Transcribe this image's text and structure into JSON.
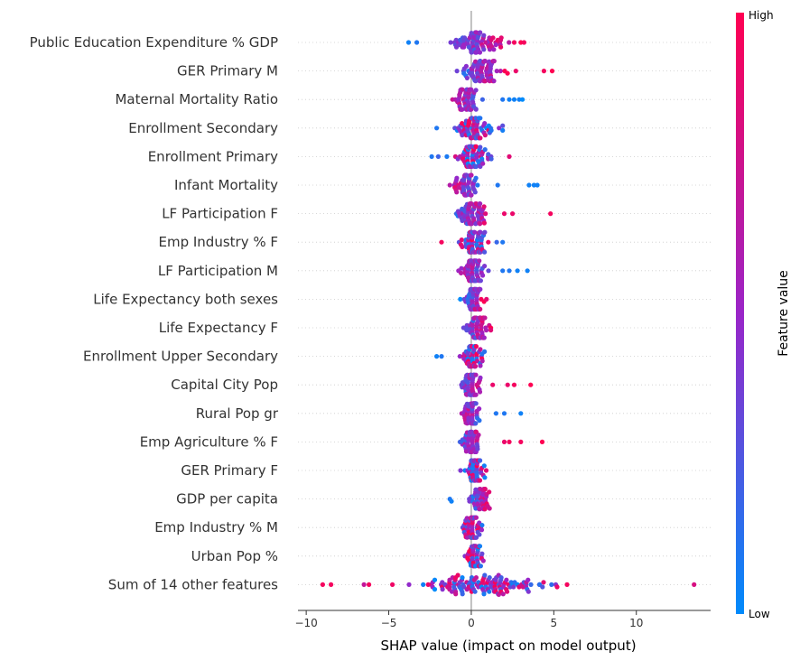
{
  "chart_data": {
    "type": "scatter",
    "subtype": "shap-beeswarm",
    "xlabel": "SHAP value (impact on model output)",
    "xlim": [
      -10.5,
      14.5
    ],
    "xticks": [
      -10,
      -5,
      0,
      5,
      10
    ],
    "colorbar": {
      "label": "Feature value",
      "high": "High",
      "low": "Low",
      "low_color": "#008bfb",
      "high_color": "#ff0052"
    },
    "grid": false,
    "features": [
      {
        "name": "Public Education Expenditure % GDP",
        "min": -3.8,
        "max": 3.2,
        "center": 0.5,
        "spread": 1.6,
        "n": 80,
        "color_trend": 1,
        "extra": [
          [
            -3.8,
            0.05
          ],
          [
            -3.3,
            0.1
          ],
          [
            2.6,
            0.95
          ],
          [
            3.0,
            1.0
          ],
          [
            3.2,
            0.95
          ]
        ]
      },
      {
        "name": "GER Primary M",
        "min": -1.2,
        "max": 5.0,
        "center": 0.6,
        "spread": 1.1,
        "n": 75,
        "color_trend": 1,
        "extra": [
          [
            4.4,
            0.95
          ],
          [
            4.9,
            1.0
          ],
          [
            2.7,
            0.9
          ]
        ]
      },
      {
        "name": "Maternal Mortality Ratio",
        "min": -1.3,
        "max": 3.1,
        "center": -0.3,
        "spread": 0.7,
        "n": 60,
        "color_trend": -1,
        "extra": [
          [
            1.9,
            0.1
          ],
          [
            2.3,
            0.05
          ],
          [
            2.6,
            0.05
          ],
          [
            2.9,
            0.05
          ],
          [
            3.1,
            0.0
          ]
        ]
      },
      {
        "name": "Enrollment Secondary",
        "min": -2.1,
        "max": 1.9,
        "center": 0.2,
        "spread": 0.9,
        "n": 70,
        "color_trend": 0,
        "extra": [
          [
            -2.1,
            0.1
          ],
          [
            1.9,
            0.3
          ]
        ]
      },
      {
        "name": "Enrollment Primary",
        "min": -2.4,
        "max": 2.4,
        "center": 0.2,
        "spread": 0.9,
        "n": 75,
        "color_trend": 0,
        "extra": [
          [
            -2.4,
            0.1
          ],
          [
            -2.0,
            0.2
          ],
          [
            2.3,
            0.85
          ]
        ]
      },
      {
        "name": "Infant Mortality",
        "min": -1.3,
        "max": 4.0,
        "center": -0.3,
        "spread": 0.6,
        "n": 55,
        "color_trend": -1,
        "extra": [
          [
            3.5,
            0.05
          ],
          [
            3.8,
            0.05
          ],
          [
            4.0,
            0.05
          ],
          [
            1.6,
            0.1
          ]
        ]
      },
      {
        "name": "LF Participation F",
        "min": -1.3,
        "max": 4.8,
        "center": 0.0,
        "spread": 0.8,
        "n": 70,
        "color_trend": 1,
        "extra": [
          [
            4.8,
            0.95
          ],
          [
            2.5,
            0.9
          ],
          [
            2.0,
            0.9
          ]
        ]
      },
      {
        "name": "Emp Industry % F",
        "min": -1.8,
        "max": 1.9,
        "center": 0.1,
        "spread": 0.8,
        "n": 70,
        "color_trend": 0,
        "extra": [
          [
            -1.8,
            0.95
          ],
          [
            1.9,
            0.1
          ]
        ]
      },
      {
        "name": "LF Participation M",
        "min": -1.0,
        "max": 3.5,
        "center": 0.1,
        "spread": 0.7,
        "n": 65,
        "color_trend": -1,
        "extra": [
          [
            2.3,
            0.1
          ],
          [
            2.8,
            0.05
          ],
          [
            3.4,
            0.05
          ],
          [
            1.9,
            0.1
          ]
        ]
      },
      {
        "name": "Life Expectancy both sexes",
        "min": -1.0,
        "max": 1.5,
        "center": 0.2,
        "spread": 0.55,
        "n": 60,
        "color_trend": 1,
        "extra": []
      },
      {
        "name": "Life Expectancy F",
        "min": -1.1,
        "max": 1.7,
        "center": 0.3,
        "spread": 0.6,
        "n": 60,
        "color_trend": 1,
        "extra": []
      },
      {
        "name": "Enrollment Upper Secondary",
        "min": -2.1,
        "max": 1.0,
        "center": 0.0,
        "spread": 0.6,
        "n": 60,
        "color_trend": 0,
        "extra": [
          [
            -2.1,
            0.05
          ],
          [
            -1.8,
            0.1
          ]
        ]
      },
      {
        "name": "Capital City Pop",
        "min": -1.6,
        "max": 3.6,
        "center": 0.0,
        "spread": 0.6,
        "n": 55,
        "color_trend": 1,
        "extra": [
          [
            2.2,
            0.9
          ],
          [
            2.6,
            0.95
          ],
          [
            3.6,
            1.0
          ],
          [
            1.3,
            0.9
          ]
        ]
      },
      {
        "name": "Rural Pop gr",
        "min": -0.9,
        "max": 3.0,
        "center": 0.0,
        "spread": 0.5,
        "n": 55,
        "color_trend": -1,
        "extra": [
          [
            2.0,
            0.1
          ],
          [
            3.0,
            0.05
          ],
          [
            1.5,
            0.1
          ]
        ]
      },
      {
        "name": "Emp Agriculture % F",
        "min": -0.9,
        "max": 4.3,
        "center": 0.0,
        "spread": 0.5,
        "n": 55,
        "color_trend": 1,
        "extra": [
          [
            2.0,
            0.9
          ],
          [
            2.3,
            0.95
          ],
          [
            3.0,
            0.95
          ],
          [
            4.3,
            1.0
          ]
        ]
      },
      {
        "name": "GER Primary F",
        "min": -0.9,
        "max": 1.6,
        "center": 0.2,
        "spread": 0.55,
        "n": 60,
        "color_trend": 0,
        "extra": []
      },
      {
        "name": "GDP per capita",
        "min": -1.3,
        "max": 1.6,
        "center": 0.5,
        "spread": 0.6,
        "n": 50,
        "color_trend": 1,
        "extra": [
          [
            -1.3,
            0.1
          ],
          [
            -1.2,
            0.05
          ]
        ]
      },
      {
        "name": "Emp Industry % M",
        "min": -1.0,
        "max": 1.3,
        "center": 0.1,
        "spread": 0.5,
        "n": 60,
        "color_trend": 0,
        "extra": []
      },
      {
        "name": "Urban Pop %",
        "min": -0.8,
        "max": 1.4,
        "center": 0.2,
        "spread": 0.45,
        "n": 55,
        "color_trend": 0,
        "extra": []
      },
      {
        "name": "Sum of 14 other features",
        "min": -9.0,
        "max": 13.5,
        "center": 0.5,
        "spread": 3.2,
        "n": 130,
        "color_trend": 0,
        "extra": [
          [
            -9.0,
            0.95
          ],
          [
            -8.5,
            0.95
          ],
          [
            -6.5,
            0.7
          ],
          [
            -6.2,
            0.95
          ],
          [
            13.5,
            0.8
          ],
          [
            5.8,
            0.95
          ],
          [
            5.2,
            0.9
          ]
        ]
      }
    ]
  }
}
